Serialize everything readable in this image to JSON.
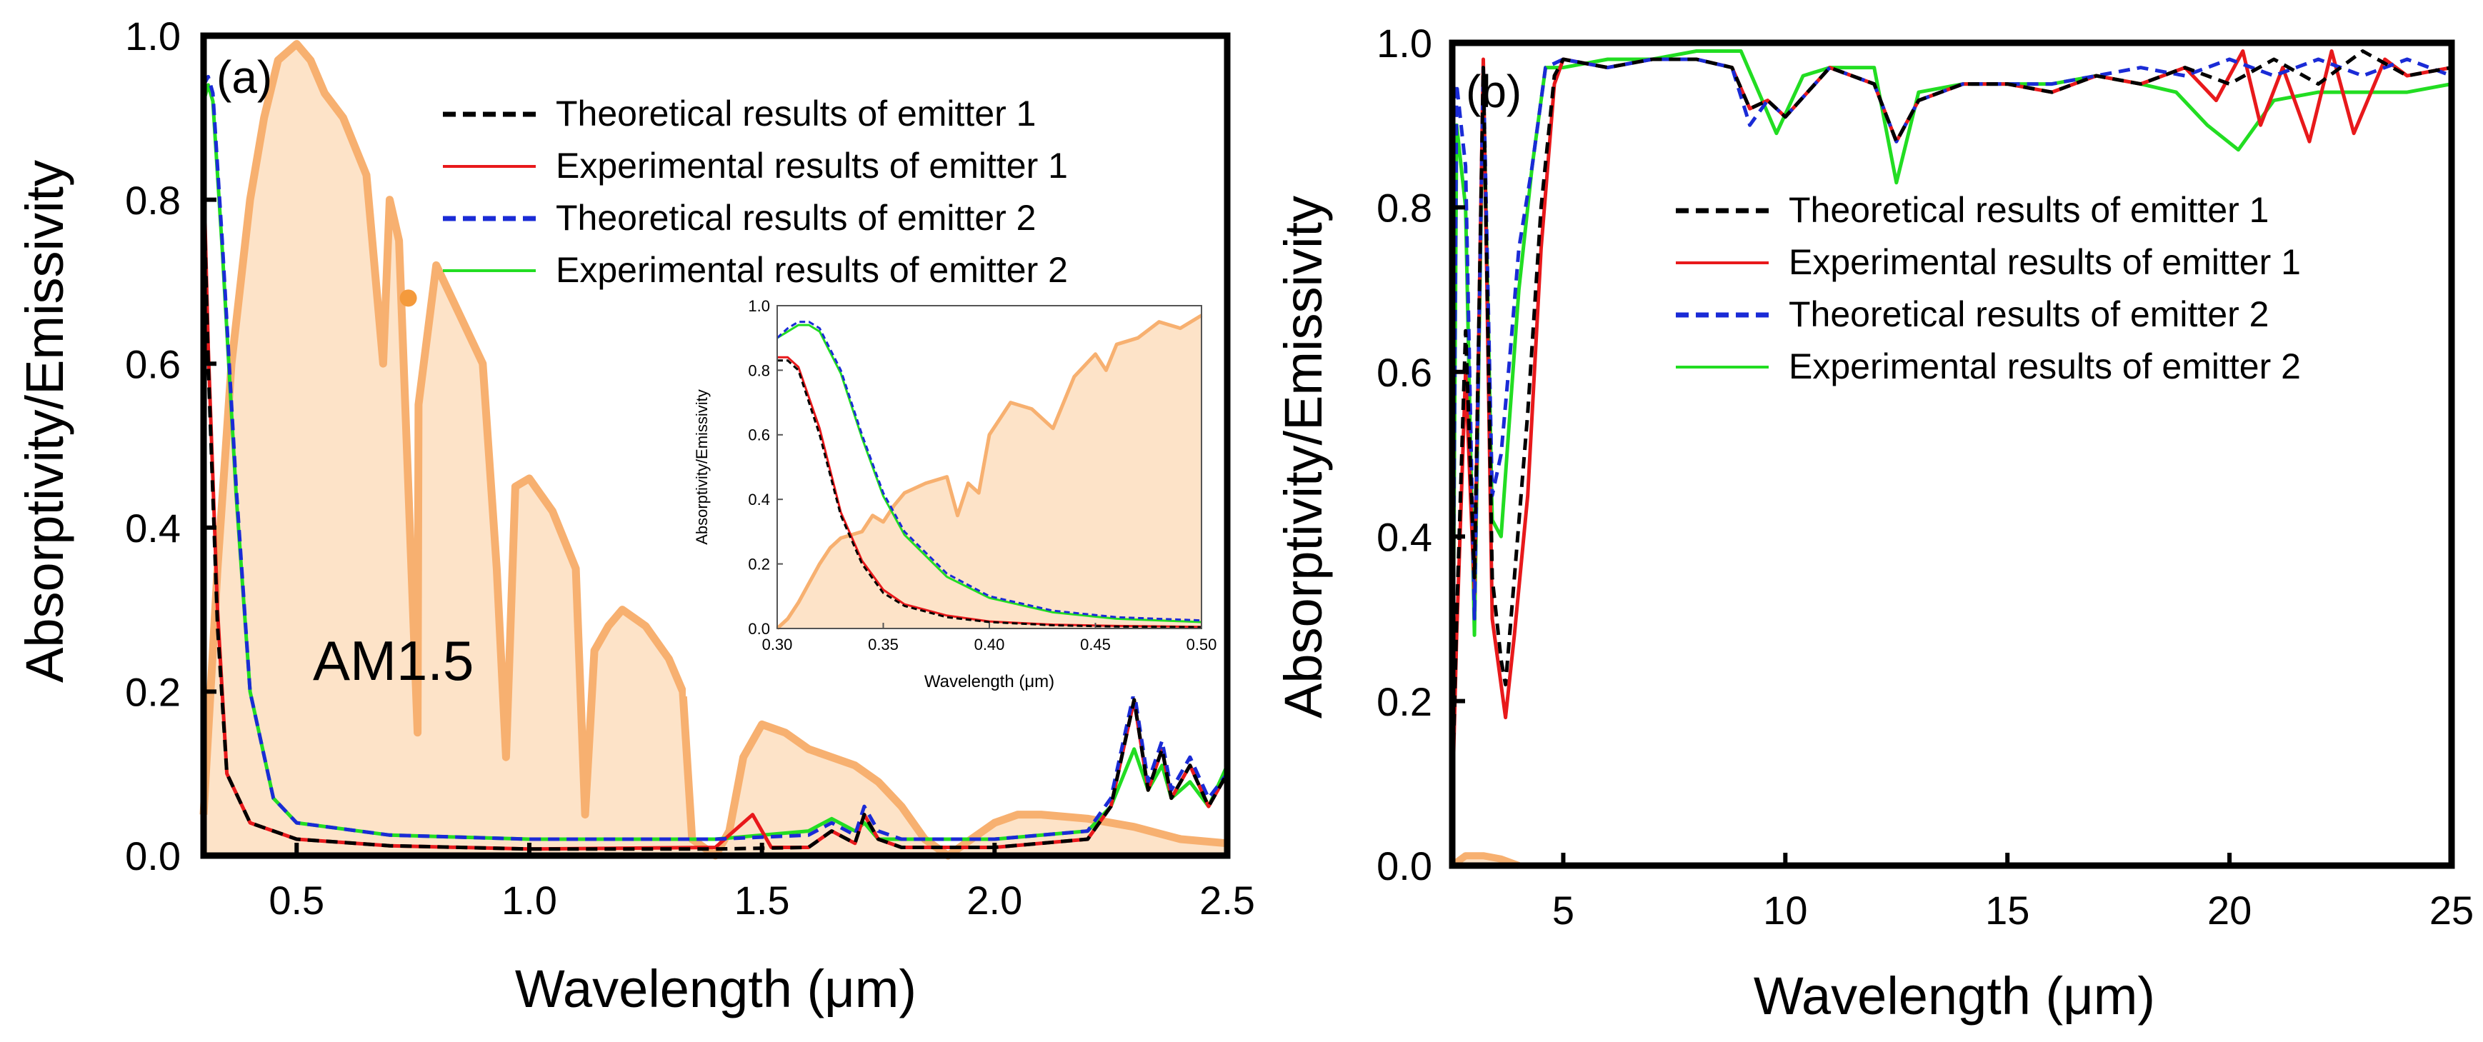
{
  "figure": {
    "colors": {
      "theory1": "#000000",
      "exp1": "#e8191b",
      "theory2": "#1a2bd6",
      "exp2": "#22dd22",
      "am_fill": "#fde3c8",
      "am_line": "#f7b070"
    }
  },
  "chart_data": [
    {
      "id": "a",
      "type": "line",
      "panel_label": "(a)",
      "xlabel": "Wavelength (μm)",
      "ylabel": "Absorptivity/Emissivity",
      "xlim": [
        0.3,
        2.5
      ],
      "ylim": [
        0.0,
        1.0
      ],
      "xticks": [
        0.5,
        1.0,
        1.5,
        2.0,
        2.5
      ],
      "xtick_labels": [
        "0.5",
        "1.0",
        "1.5",
        "2.0",
        "2.5"
      ],
      "yticks": [
        0.0,
        0.2,
        0.4,
        0.6,
        0.8,
        1.0
      ],
      "ytick_labels": [
        "0.0",
        "0.2",
        "0.4",
        "0.6",
        "0.8",
        "1.0"
      ],
      "annotation": "AM1.5",
      "legend_position": "top-right",
      "legend": [
        {
          "key": "theory1",
          "label": "Theoretical results of emitter 1",
          "dash": true
        },
        {
          "key": "exp1",
          "label": "Experimental results of emitter 1",
          "dash": false
        },
        {
          "key": "theory2",
          "label": "Theoretical results of emitter 2",
          "dash": true
        },
        {
          "key": "exp2",
          "label": "Experimental results of emitter 2",
          "dash": false
        }
      ],
      "am15": {
        "x": [
          0.3,
          0.33,
          0.36,
          0.4,
          0.43,
          0.46,
          0.5,
          0.53,
          0.56,
          0.6,
          0.65,
          0.686,
          0.7,
          0.72,
          0.76,
          0.762,
          0.8,
          0.85,
          0.9,
          0.93,
          0.95,
          0.97,
          1.0,
          1.05,
          1.1,
          1.12,
          1.14,
          1.17,
          1.2,
          1.25,
          1.3,
          1.33,
          1.35,
          1.4,
          1.43,
          1.46,
          1.5,
          1.55,
          1.6,
          1.7,
          1.75,
          1.8,
          1.85,
          1.9,
          1.95,
          2.0,
          2.05,
          2.1,
          2.2,
          2.3,
          2.4,
          2.5
        ],
        "y": [
          0.05,
          0.35,
          0.6,
          0.8,
          0.9,
          0.97,
          0.99,
          0.97,
          0.93,
          0.9,
          0.83,
          0.6,
          0.8,
          0.75,
          0.15,
          0.55,
          0.72,
          0.66,
          0.6,
          0.35,
          0.12,
          0.45,
          0.46,
          0.42,
          0.35,
          0.05,
          0.25,
          0.28,
          0.3,
          0.28,
          0.24,
          0.2,
          0.02,
          0.0,
          0.03,
          0.12,
          0.16,
          0.15,
          0.13,
          0.11,
          0.09,
          0.06,
          0.02,
          0.0,
          0.02,
          0.04,
          0.05,
          0.05,
          0.045,
          0.035,
          0.02,
          0.015
        ]
      },
      "marker": {
        "x": 0.74,
        "y": 0.68
      },
      "series": [
        {
          "key": "theory1",
          "x": [
            0.3,
            0.31,
            0.33,
            0.35,
            0.4,
            0.5,
            0.7,
            1.0,
            1.4,
            1.6,
            1.65,
            1.7,
            1.72,
            1.75,
            1.8,
            2.0,
            2.2,
            2.25,
            2.3,
            2.33,
            2.36,
            2.38,
            2.42,
            2.46,
            2.5
          ],
          "y": [
            0.82,
            0.6,
            0.28,
            0.1,
            0.04,
            0.02,
            0.012,
            0.008,
            0.008,
            0.01,
            0.03,
            0.015,
            0.05,
            0.02,
            0.01,
            0.01,
            0.02,
            0.06,
            0.19,
            0.08,
            0.13,
            0.07,
            0.11,
            0.06,
            0.1
          ]
        },
        {
          "key": "exp1",
          "x": [
            0.3,
            0.31,
            0.33,
            0.35,
            0.4,
            0.5,
            0.7,
            1.0,
            1.4,
            1.48,
            1.52,
            1.6,
            1.65,
            1.7,
            1.72,
            1.75,
            1.8,
            2.0,
            2.2,
            2.25,
            2.3,
            2.33,
            2.36,
            2.38,
            2.42,
            2.46,
            2.5
          ],
          "y": [
            0.84,
            0.62,
            0.3,
            0.1,
            0.04,
            0.02,
            0.012,
            0.008,
            0.01,
            0.05,
            0.01,
            0.01,
            0.03,
            0.015,
            0.05,
            0.02,
            0.01,
            0.01,
            0.02,
            0.06,
            0.19,
            0.08,
            0.13,
            0.07,
            0.11,
            0.06,
            0.1
          ]
        },
        {
          "key": "theory2",
          "x": [
            0.3,
            0.31,
            0.32,
            0.34,
            0.37,
            0.4,
            0.45,
            0.5,
            0.7,
            1.0,
            1.4,
            1.6,
            1.65,
            1.7,
            1.72,
            1.75,
            1.8,
            2.0,
            2.2,
            2.25,
            2.3,
            2.33,
            2.36,
            2.38,
            2.42,
            2.46,
            2.5
          ],
          "y": [
            0.94,
            0.95,
            0.93,
            0.75,
            0.45,
            0.2,
            0.07,
            0.04,
            0.025,
            0.02,
            0.02,
            0.025,
            0.04,
            0.025,
            0.06,
            0.03,
            0.02,
            0.02,
            0.03,
            0.07,
            0.2,
            0.09,
            0.14,
            0.08,
            0.12,
            0.07,
            0.1
          ]
        },
        {
          "key": "exp2",
          "x": [
            0.3,
            0.31,
            0.32,
            0.34,
            0.37,
            0.4,
            0.45,
            0.5,
            0.7,
            1.0,
            1.4,
            1.6,
            1.65,
            1.7,
            1.72,
            1.75,
            1.8,
            2.0,
            2.2,
            2.25,
            2.3,
            2.33,
            2.36,
            2.38,
            2.42,
            2.46,
            2.5
          ],
          "y": [
            0.92,
            0.94,
            0.92,
            0.74,
            0.44,
            0.2,
            0.07,
            0.04,
            0.025,
            0.02,
            0.02,
            0.03,
            0.045,
            0.03,
            0.04,
            0.02,
            0.02,
            0.02,
            0.03,
            0.06,
            0.13,
            0.08,
            0.11,
            0.07,
            0.09,
            0.06,
            0.11
          ]
        }
      ]
    },
    {
      "id": "inset",
      "type": "line",
      "xlabel": "Wavelength (μm)",
      "ylabel": "Absorptivity/Emissivity",
      "xlim": [
        0.3,
        0.5
      ],
      "ylim": [
        0.0,
        1.0
      ],
      "xticks": [
        0.3,
        0.35,
        0.4,
        0.45,
        0.5
      ],
      "xtick_labels": [
        "0.30",
        "0.35",
        "0.40",
        "0.45",
        "0.50"
      ],
      "yticks": [
        0.0,
        0.2,
        0.4,
        0.6,
        0.8,
        1.0
      ],
      "ytick_labels": [
        "0.0",
        "0.2",
        "0.4",
        "0.6",
        "0.8",
        "1.0"
      ],
      "am15": {
        "x": [
          0.3,
          0.305,
          0.31,
          0.315,
          0.32,
          0.325,
          0.33,
          0.34,
          0.345,
          0.35,
          0.355,
          0.36,
          0.37,
          0.38,
          0.385,
          0.39,
          0.395,
          0.4,
          0.405,
          0.41,
          0.42,
          0.43,
          0.44,
          0.45,
          0.455,
          0.46,
          0.47,
          0.48,
          0.49,
          0.5
        ],
        "y": [
          0.0,
          0.03,
          0.08,
          0.14,
          0.2,
          0.25,
          0.28,
          0.3,
          0.35,
          0.33,
          0.38,
          0.42,
          0.45,
          0.47,
          0.35,
          0.45,
          0.42,
          0.6,
          0.65,
          0.7,
          0.68,
          0.62,
          0.78,
          0.85,
          0.8,
          0.88,
          0.9,
          0.95,
          0.93,
          0.97
        ]
      },
      "series": [
        {
          "key": "theory1",
          "x": [
            0.3,
            0.305,
            0.31,
            0.32,
            0.33,
            0.34,
            0.35,
            0.36,
            0.38,
            0.4,
            0.43,
            0.46,
            0.5
          ],
          "y": [
            0.83,
            0.83,
            0.8,
            0.6,
            0.35,
            0.2,
            0.11,
            0.07,
            0.035,
            0.02,
            0.01,
            0.006,
            0.004
          ]
        },
        {
          "key": "exp1",
          "x": [
            0.3,
            0.305,
            0.31,
            0.32,
            0.33,
            0.34,
            0.35,
            0.36,
            0.38,
            0.4,
            0.43,
            0.46,
            0.5
          ],
          "y": [
            0.84,
            0.84,
            0.81,
            0.62,
            0.36,
            0.21,
            0.12,
            0.075,
            0.04,
            0.022,
            0.012,
            0.008,
            0.005
          ]
        },
        {
          "key": "theory2",
          "x": [
            0.3,
            0.305,
            0.31,
            0.315,
            0.32,
            0.33,
            0.34,
            0.35,
            0.36,
            0.38,
            0.4,
            0.43,
            0.46,
            0.5
          ],
          "y": [
            0.9,
            0.93,
            0.95,
            0.95,
            0.93,
            0.8,
            0.6,
            0.42,
            0.3,
            0.17,
            0.1,
            0.055,
            0.035,
            0.025
          ]
        },
        {
          "key": "exp2",
          "x": [
            0.3,
            0.305,
            0.31,
            0.315,
            0.32,
            0.33,
            0.34,
            0.35,
            0.36,
            0.38,
            0.4,
            0.43,
            0.46,
            0.5
          ],
          "y": [
            0.9,
            0.92,
            0.94,
            0.94,
            0.92,
            0.79,
            0.59,
            0.41,
            0.29,
            0.16,
            0.095,
            0.05,
            0.03,
            0.02
          ]
        }
      ]
    },
    {
      "id": "b",
      "type": "line",
      "panel_label": "(b)",
      "xlabel": "Wavelength (μm)",
      "ylabel": "Absorptivity/Emissivity",
      "xlim": [
        2.5,
        25
      ],
      "ylim": [
        0.0,
        1.0
      ],
      "xticks": [
        5,
        10,
        15,
        20,
        25
      ],
      "xtick_labels": [
        "5",
        "10",
        "15",
        "20",
        "25"
      ],
      "yticks": [
        0.0,
        0.2,
        0.4,
        0.6,
        0.8,
        1.0
      ],
      "ytick_labels": [
        "0.0",
        "0.2",
        "0.4",
        "0.6",
        "0.8",
        "1.0"
      ],
      "legend_position": "middle-right",
      "legend": [
        {
          "key": "theory1",
          "label": "Theoretical results of emitter 1",
          "dash": true
        },
        {
          "key": "exp1",
          "label": "Experimental results of emitter 1",
          "dash": false
        },
        {
          "key": "theory2",
          "label": "Theoretical results of emitter 2",
          "dash": true
        },
        {
          "key": "exp2",
          "label": "Experimental results of emitter 2",
          "dash": false
        }
      ],
      "am15": {
        "x": [
          2.5,
          2.8,
          3.2,
          3.6,
          4.0
        ],
        "y": [
          0.0,
          0.012,
          0.012,
          0.008,
          0.0
        ]
      },
      "series": [
        {
          "key": "theory1",
          "x": [
            2.5,
            2.6,
            2.8,
            3.0,
            3.2,
            3.4,
            3.6,
            3.7,
            3.9,
            4.2,
            4.5,
            4.8,
            5.0,
            6,
            7,
            8,
            8.8,
            9.2,
            9.6,
            10,
            11,
            12,
            12.5,
            13,
            14,
            15,
            16,
            17,
            18,
            19,
            20,
            21,
            22,
            23,
            24,
            25
          ],
          "y": [
            0.08,
            0.3,
            0.65,
            0.35,
            0.97,
            0.35,
            0.25,
            0.22,
            0.35,
            0.55,
            0.8,
            0.96,
            0.98,
            0.97,
            0.98,
            0.98,
            0.97,
            0.92,
            0.93,
            0.91,
            0.97,
            0.95,
            0.88,
            0.93,
            0.95,
            0.95,
            0.94,
            0.96,
            0.95,
            0.97,
            0.95,
            0.98,
            0.95,
            0.99,
            0.96,
            0.97
          ]
        },
        {
          "key": "exp1",
          "x": [
            2.5,
            2.6,
            2.8,
            3.0,
            3.2,
            3.4,
            3.6,
            3.7,
            3.9,
            4.2,
            4.5,
            4.8,
            5.0,
            6,
            7,
            8,
            8.8,
            9.2,
            9.6,
            10,
            11,
            12,
            12.5,
            13,
            14,
            15,
            16,
            17,
            18,
            19,
            19.7,
            20.3,
            20.7,
            21.2,
            21.8,
            22.3,
            22.8,
            23.5,
            24,
            25
          ],
          "y": [
            0.07,
            0.28,
            0.6,
            0.33,
            0.98,
            0.3,
            0.22,
            0.18,
            0.28,
            0.45,
            0.75,
            0.95,
            0.98,
            0.97,
            0.98,
            0.98,
            0.97,
            0.92,
            0.93,
            0.91,
            0.97,
            0.95,
            0.88,
            0.93,
            0.95,
            0.95,
            0.94,
            0.96,
            0.95,
            0.97,
            0.93,
            0.99,
            0.9,
            0.97,
            0.88,
            0.99,
            0.89,
            0.98,
            0.96,
            0.97
          ]
        },
        {
          "key": "theory2",
          "x": [
            2.5,
            2.6,
            2.8,
            3.0,
            3.2,
            3.4,
            3.6,
            3.8,
            4.0,
            4.3,
            4.6,
            5.0,
            6,
            7,
            8,
            8.8,
            9.2,
            9.6,
            10,
            11,
            12,
            12.5,
            13,
            14,
            15,
            16,
            17,
            18,
            19,
            20,
            21,
            22,
            23,
            24,
            25
          ],
          "y": [
            0.12,
            0.95,
            0.85,
            0.3,
            0.97,
            0.45,
            0.5,
            0.62,
            0.75,
            0.85,
            0.97,
            0.98,
            0.97,
            0.98,
            0.98,
            0.97,
            0.9,
            0.93,
            0.91,
            0.97,
            0.95,
            0.88,
            0.93,
            0.95,
            0.95,
            0.95,
            0.96,
            0.97,
            0.96,
            0.98,
            0.96,
            0.98,
            0.96,
            0.98,
            0.96
          ]
        },
        {
          "key": "exp2",
          "x": [
            2.5,
            2.6,
            2.8,
            3.0,
            3.2,
            3.4,
            3.6,
            3.8,
            4.0,
            4.3,
            4.6,
            5.0,
            6,
            7,
            8,
            9,
            9.8,
            10.4,
            11,
            12,
            12.5,
            13,
            14,
            15,
            16,
            17,
            18,
            18.8,
            19.5,
            20.2,
            21,
            22,
            23,
            24,
            25
          ],
          "y": [
            0.1,
            0.9,
            0.8,
            0.28,
            0.96,
            0.42,
            0.4,
            0.55,
            0.7,
            0.85,
            0.97,
            0.97,
            0.98,
            0.98,
            0.99,
            0.99,
            0.89,
            0.96,
            0.97,
            0.97,
            0.83,
            0.94,
            0.95,
            0.95,
            0.95,
            0.96,
            0.95,
            0.94,
            0.9,
            0.87,
            0.93,
            0.94,
            0.94,
            0.94,
            0.95
          ]
        }
      ]
    }
  ]
}
